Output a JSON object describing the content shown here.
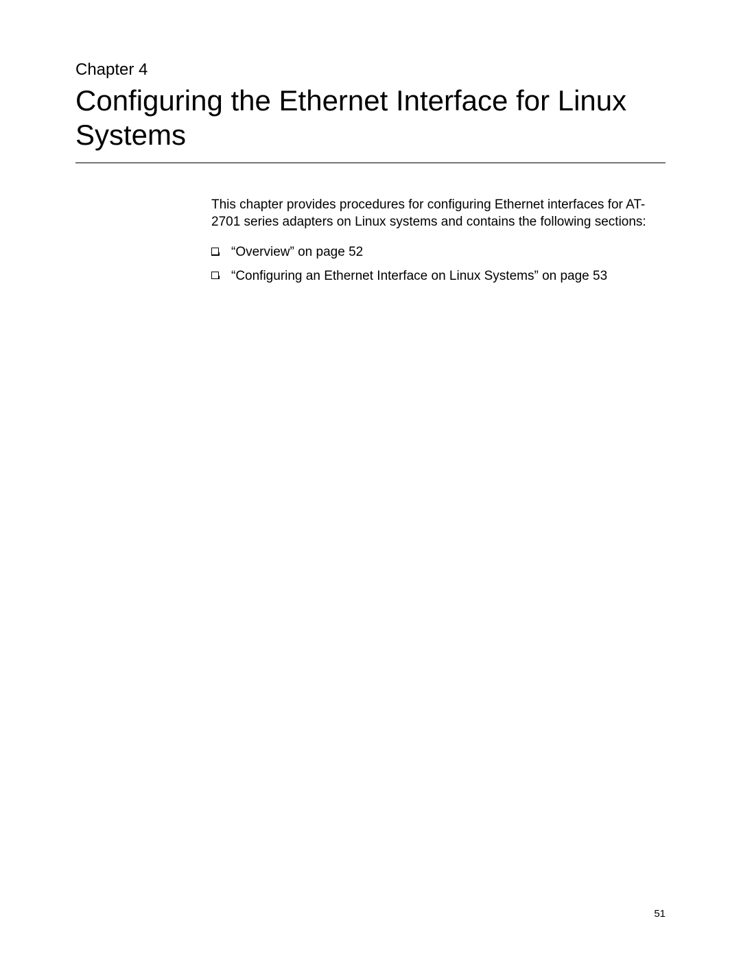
{
  "header": {
    "chapter_label": "Chapter 4",
    "chapter_title": "Configuring the Ethernet Interface for Linux Systems"
  },
  "body": {
    "intro_paragraph": "This chapter provides procedures for configuring Ethernet interfaces for AT-2701 series adapters on Linux systems and contains the following sections:",
    "bullets": [
      "“Overview” on page 52",
      "“Configuring an Ethernet Interface on Linux Systems” on page 53"
    ]
  },
  "footer": {
    "page_number": "51"
  },
  "style": {
    "background_color": "#ffffff",
    "text_color": "#000000",
    "chapter_label_fontsize": 24,
    "chapter_title_fontsize": 42,
    "body_fontsize": 19,
    "page_number_fontsize": 15,
    "hr_color": "#000000"
  }
}
